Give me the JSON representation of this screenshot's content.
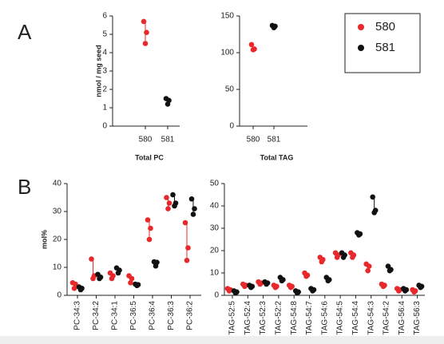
{
  "panel_labels": [
    "A",
    "B"
  ],
  "chart_data": [
    {
      "type": "strip",
      "xlabel": "Total PC",
      "ylabel": "nmol / mg seed",
      "categories": [
        "580",
        "581"
      ],
      "series": [
        {
          "name": "580",
          "color": "#e8282b",
          "values": [
            [
              5.7,
              5.1,
              4.5
            ],
            null
          ]
        },
        {
          "name": "581",
          "color": "#111111",
          "values": [
            null,
            [
              1.5,
              1.4,
              1.2
            ]
          ]
        }
      ],
      "ylim": [
        0,
        6
      ],
      "yticks": [
        0,
        1,
        2,
        3,
        4,
        5,
        6
      ]
    },
    {
      "type": "strip",
      "xlabel": "Total TAG",
      "categories": [
        "580",
        "581"
      ],
      "series": [
        {
          "name": "580",
          "color": "#e8282b",
          "values": [
            [
              111,
              105,
              104
            ],
            null
          ]
        },
        {
          "name": "581",
          "color": "#111111",
          "values": [
            null,
            [
              137,
              136,
              134
            ]
          ]
        }
      ],
      "ylim": [
        0,
        150
      ],
      "yticks": [
        0,
        50,
        100,
        150
      ]
    },
    {
      "type": "strip",
      "ylabel": "mol%",
      "categories": [
        "PC-34:3",
        "PC-34:2",
        "PC-34:1",
        "PC-36:5",
        "PC-36:4",
        "PC-36:3",
        "PC-36:2"
      ],
      "series": [
        {
          "name": "580",
          "color": "#e8282b",
          "values": [
            [
              4.5,
              4.0,
              2.5
            ],
            [
              13,
              7,
              6
            ],
            [
              8,
              7,
              6
            ],
            [
              7,
              6,
              4.5
            ],
            [
              27,
              24,
              20
            ],
            [
              35,
              33,
              31
            ],
            [
              26,
              17,
              12.5
            ]
          ]
        },
        {
          "name": "581",
          "color": "#111111",
          "values": [
            [
              3.0,
              2.5,
              2.0
            ],
            [
              7.5,
              6.5,
              6
            ],
            [
              9.8,
              9,
              8
            ],
            [
              4,
              3.8,
              3.5
            ],
            [
              12,
              11.8,
              10.5
            ],
            [
              36,
              33,
              32
            ],
            [
              34.5,
              31,
              29
            ]
          ]
        }
      ],
      "ylim": [
        0,
        40
      ],
      "yticks": [
        0,
        10,
        20,
        30,
        40
      ]
    },
    {
      "type": "strip",
      "categories": [
        "TAG-52:5",
        "TAG-52:4",
        "TAG-52:3",
        "TAG-52:2",
        "TAG-54:8",
        "TAG-54:7",
        "TAG-54:6",
        "TAG-54:5",
        "TAG-54:4",
        "TAG-54:3",
        "TAG-54:2",
        "TAG-56:4",
        "TAG-56:3"
      ],
      "series": [
        {
          "name": "580",
          "color": "#e8282b",
          "values": [
            [
              3,
              2.5,
              2
            ],
            [
              5,
              4.5,
              4
            ],
            [
              6,
              5.5,
              5
            ],
            [
              4.5,
              4,
              3.5
            ],
            [
              4.5,
              4,
              3.5
            ],
            [
              10,
              9,
              8.5
            ],
            [
              17,
              16,
              15
            ],
            [
              19,
              18,
              17
            ],
            [
              19,
              18,
              17
            ],
            [
              14,
              13,
              11
            ],
            [
              5,
              4.5,
              4
            ],
            [
              3,
              2.5,
              2
            ],
            [
              2.5,
              2,
              1.5
            ]
          ]
        },
        {
          "name": "581",
          "color": "#111111",
          "values": [
            [
              2,
              1.5,
              1
            ],
            [
              4.5,
              4,
              3.5
            ],
            [
              6,
              5.5,
              5
            ],
            [
              8,
              7,
              6.5
            ],
            [
              2,
              1.5,
              1
            ],
            [
              3,
              2.5,
              2
            ],
            [
              8,
              7,
              6.5
            ],
            [
              19,
              18,
              17
            ],
            [
              28,
              27.5,
              27
            ],
            [
              44,
              38,
              37
            ],
            [
              13,
              11.5,
              11
            ],
            [
              3,
              2.5,
              2
            ],
            [
              4.5,
              4,
              3.5
            ]
          ]
        }
      ],
      "ylim": [
        0,
        50
      ],
      "yticks": [
        0,
        10,
        20,
        30,
        40,
        50
      ]
    }
  ]
}
